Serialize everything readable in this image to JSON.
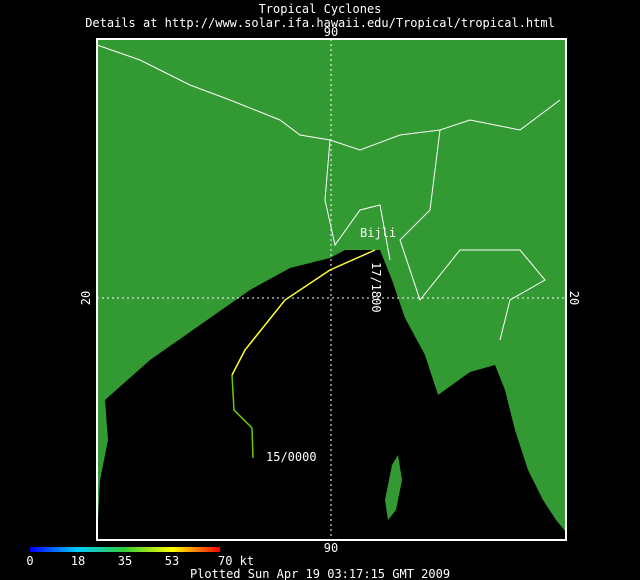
{
  "header": {
    "title": "Tropical Cyclones",
    "subtitle": "Details at http://www.solar.ifa.hawaii.edu/Tropical/tropical.html"
  },
  "map": {
    "lon_label_top": "90",
    "lon_label_bottom": "90",
    "lat_label_left": "20",
    "lat_label_right": "20",
    "storm_name": "Bijli",
    "track_labels": [
      "15/0000",
      "17/1800"
    ]
  },
  "colorbar": {
    "ticks": [
      "0",
      "18",
      "35",
      "53",
      "70 kt"
    ]
  },
  "footer": "Plotted Sun Apr 19 03:17:15 GMT 2009"
}
